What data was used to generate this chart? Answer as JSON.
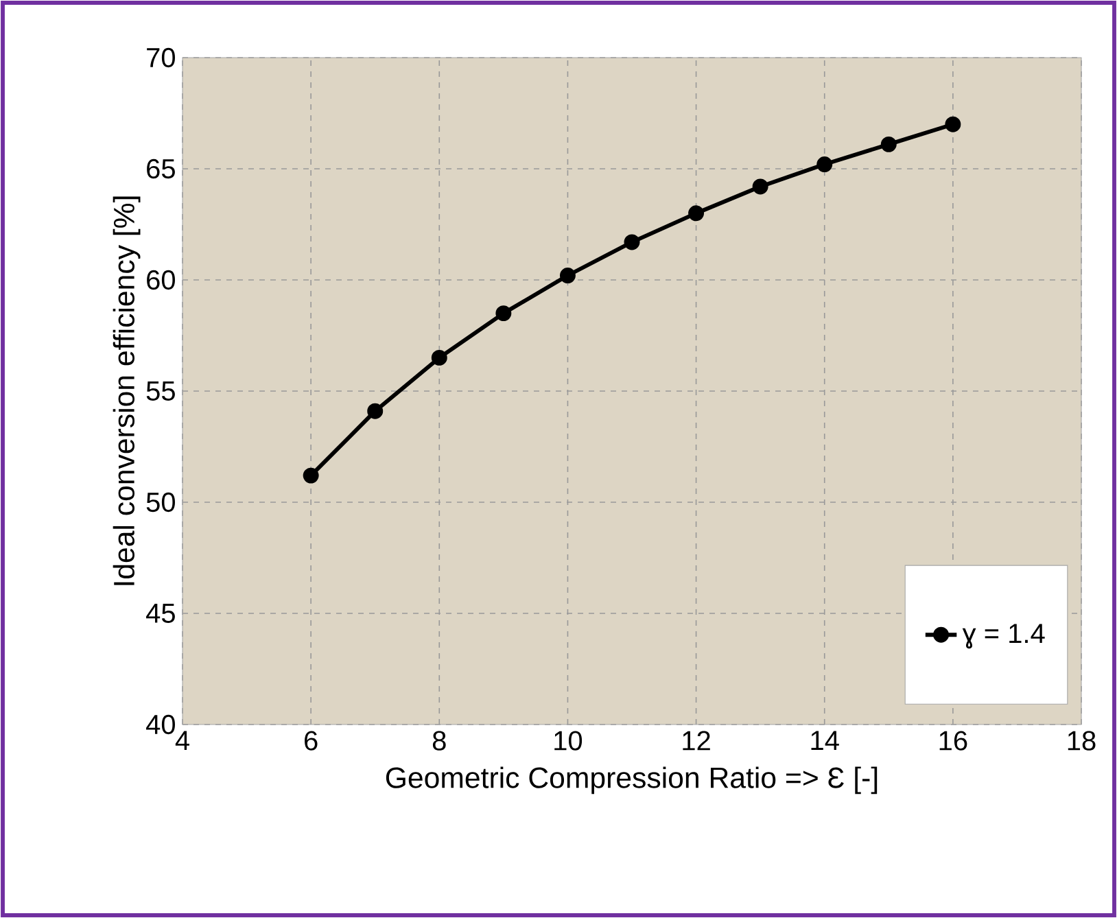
{
  "chart_data": {
    "type": "line",
    "xlabel": "Geometric Compression Ratio => Ɛ [-]",
    "ylabel": "Ideal conversion efficiency [%]",
    "x": [
      6,
      7,
      8,
      9,
      10,
      11,
      12,
      13,
      14,
      15,
      16
    ],
    "series": [
      {
        "name": "ɣ = 1.4",
        "color": "#000000",
        "values": [
          51.2,
          54.1,
          56.5,
          58.5,
          60.2,
          61.7,
          63.0,
          64.2,
          65.2,
          66.1,
          67.0
        ]
      }
    ],
    "xlim": [
      4,
      18
    ],
    "xticks": [
      4,
      6,
      8,
      10,
      12,
      14,
      16,
      18
    ],
    "ylim": [
      40,
      70
    ],
    "yticks": [
      40,
      45,
      50,
      55,
      60,
      65,
      70
    ],
    "grid": true,
    "legend": "bottom right",
    "marker": "circle",
    "line_style": "solid"
  }
}
